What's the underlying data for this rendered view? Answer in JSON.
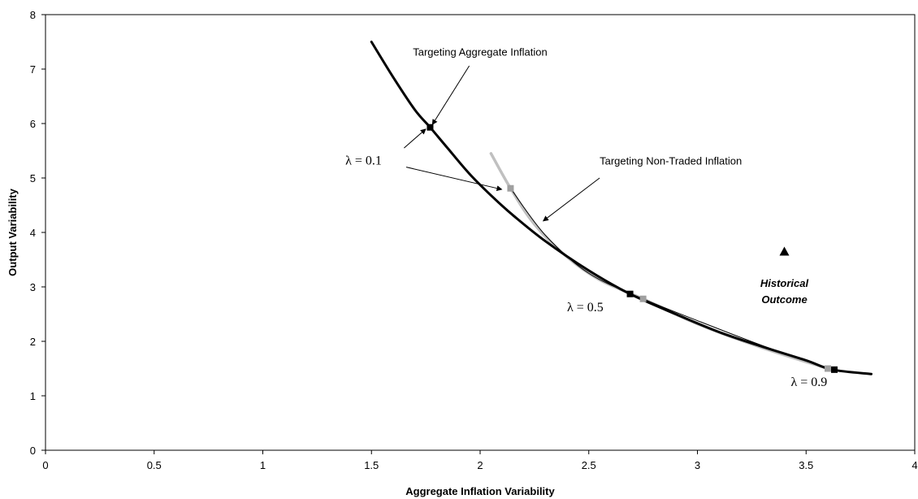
{
  "chart_data": {
    "type": "line",
    "title": "",
    "xlabel": "Aggregate Inflation Variability",
    "ylabel": "Output Variability",
    "xlim": [
      0,
      4
    ],
    "ylim": [
      0,
      8
    ],
    "xticks": [
      0,
      0.5,
      1,
      1.5,
      2,
      2.5,
      3,
      3.5,
      4
    ],
    "xtick_labels": [
      "0",
      "0.5",
      "1",
      "1.5",
      "2",
      "2.5",
      "3",
      "3.5",
      "4"
    ],
    "yticks": [
      0,
      1,
      2,
      3,
      4,
      5,
      6,
      7,
      8
    ],
    "ytick_labels": [
      "0",
      "1",
      "2",
      "3",
      "4",
      "5",
      "6",
      "7",
      "8"
    ],
    "grid": false,
    "legend": "none",
    "series": [
      {
        "key": "aggregate",
        "color": "#000000",
        "style": "thick",
        "x": [
          1.5,
          1.6,
          1.7,
          1.77,
          1.85,
          1.95,
          2.05,
          2.15,
          2.3,
          2.5,
          2.69,
          2.9,
          3.1,
          3.3,
          3.5,
          3.62,
          3.8
        ],
        "y": [
          7.5,
          6.85,
          6.25,
          5.93,
          5.55,
          5.08,
          4.68,
          4.32,
          3.84,
          3.3,
          2.87,
          2.5,
          2.17,
          1.9,
          1.65,
          1.48,
          1.4
        ]
      },
      {
        "key": "non_traded",
        "color": "#c0c0c0",
        "style": "thick",
        "x": [
          2.05,
          2.14,
          2.25,
          2.4,
          2.55,
          2.75,
          3.0,
          3.3,
          3.6
        ],
        "y": [
          5.45,
          4.81,
          4.15,
          3.55,
          3.13,
          2.78,
          2.32,
          1.88,
          1.5
        ]
      },
      {
        "key": "non_traded_thin",
        "color": "#000000",
        "style": "thin",
        "x": [
          2.14,
          2.3,
          2.5,
          2.75,
          3.0,
          3.3,
          3.6
        ],
        "y": [
          4.81,
          3.95,
          3.25,
          2.78,
          2.38,
          1.92,
          1.5
        ]
      }
    ],
    "markers": [
      {
        "x": 1.77,
        "y": 5.93,
        "color": "#000000",
        "shape": "square"
      },
      {
        "x": 2.69,
        "y": 2.87,
        "color": "#000000",
        "shape": "square"
      },
      {
        "x": 3.63,
        "y": 1.48,
        "color": "#000000",
        "shape": "square"
      },
      {
        "x": 2.14,
        "y": 4.81,
        "color": "#a0a0a0",
        "shape": "square"
      },
      {
        "x": 2.75,
        "y": 2.78,
        "color": "#a0a0a0",
        "shape": "square"
      },
      {
        "x": 3.6,
        "y": 1.5,
        "color": "#a0a0a0",
        "shape": "square"
      },
      {
        "x": 3.4,
        "y": 3.65,
        "color": "#000000",
        "shape": "triangle"
      }
    ],
    "annotations": [
      {
        "key": "agg_label",
        "text": "Targeting Aggregate Inflation",
        "x": 2.0,
        "y": 7.25,
        "class": "annot-text",
        "anchor": "middle"
      },
      {
        "key": "nontraded_label",
        "text": "Targeting Non-Traded Inflation",
        "x": 2.55,
        "y": 5.25,
        "class": "annot-text",
        "anchor": "start"
      },
      {
        "key": "lambda_01",
        "text": "λ =  0.1",
        "x": 1.38,
        "y": 5.25,
        "class": "lambda-text",
        "anchor": "start"
      },
      {
        "key": "lambda_05",
        "text": "λ = 0.5",
        "x": 2.4,
        "y": 2.55,
        "class": "lambda-text",
        "anchor": "start"
      },
      {
        "key": "lambda_09",
        "text": "λ = 0.9",
        "x": 3.43,
        "y": 1.18,
        "class": "lambda-text",
        "anchor": "start"
      },
      {
        "key": "historical_1",
        "text": "Historical",
        "x": 3.4,
        "y": 3.0,
        "class": "hist-text",
        "anchor": "middle"
      },
      {
        "key": "historical_2",
        "text": "Outcome",
        "x": 3.4,
        "y": 2.7,
        "class": "hist-text",
        "anchor": "middle"
      }
    ],
    "arrows": [
      {
        "key": "agg_arrow",
        "from": [
          1.95,
          7.06
        ],
        "to": [
          1.78,
          5.98
        ]
      },
      {
        "key": "lambda01_to_agg",
        "from": [
          1.65,
          5.55
        ],
        "to": [
          1.75,
          5.9
        ]
      },
      {
        "key": "lambda01_to_nt",
        "from": [
          1.66,
          5.2
        ],
        "to": [
          2.1,
          4.79
        ]
      },
      {
        "key": "nontraded_arrow",
        "from": [
          2.55,
          5.0
        ],
        "to": [
          2.29,
          4.21
        ]
      }
    ]
  }
}
